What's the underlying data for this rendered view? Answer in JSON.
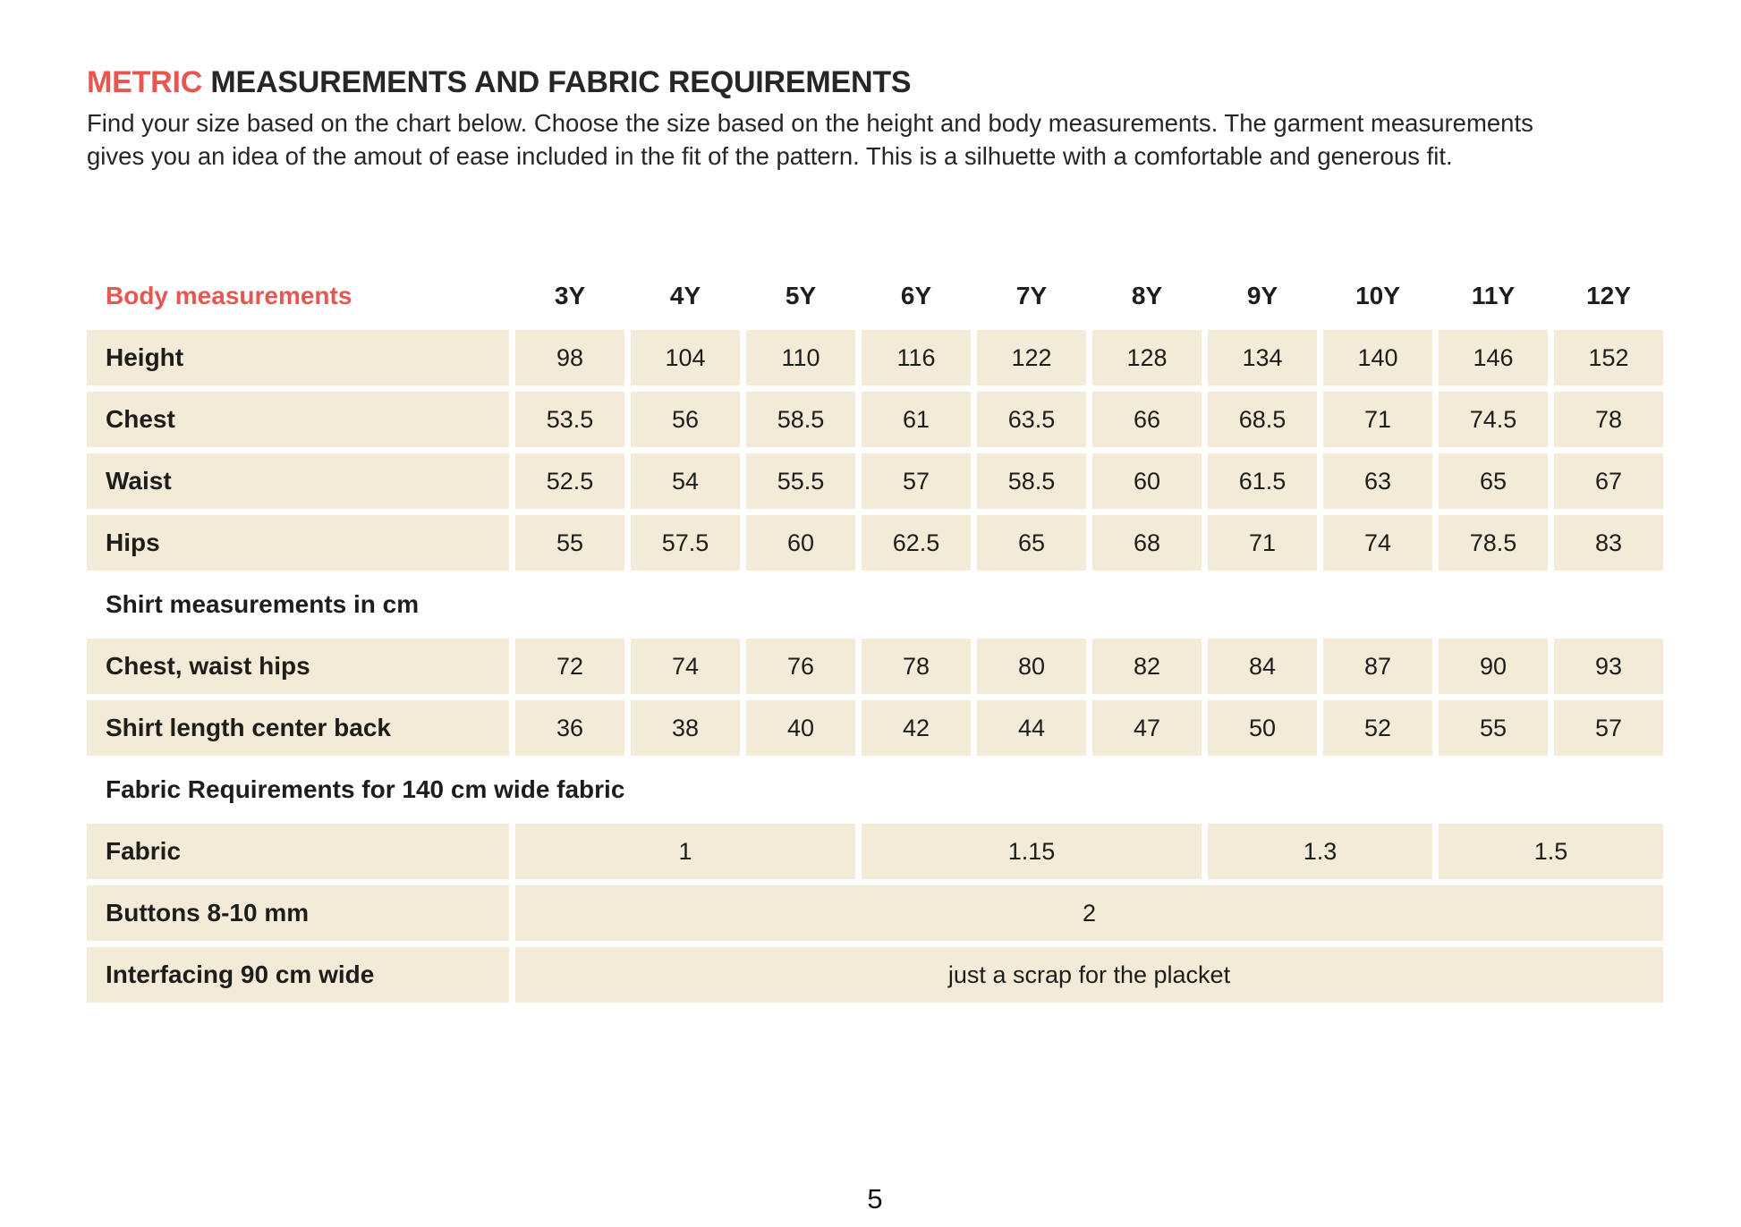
{
  "header": {
    "title_accent": "METRIC",
    "title_rest": " MEASUREMENTS AND FABRIC REQUIREMENTS",
    "intro_lines": [
      "Find your size based on the chart below. Choose the size based on the height and body measurements. The garment measurements",
      "gives you an idea of the amout of ease included in the fit of the pattern. This is a silhuette with a comfortable and generous fit."
    ]
  },
  "colors": {
    "accent_red": "#e8574f",
    "cell_beige": "#f3ebd8",
    "text_dark": "#1d1d1b"
  },
  "size_table": {
    "rows": [
      {
        "type": "header",
        "label": "Body measurements",
        "cells": [
          "3Y",
          "4Y",
          "5Y",
          "6Y",
          "7Y",
          "8Y",
          "9Y",
          "10Y",
          "11Y",
          "12Y"
        ]
      },
      {
        "type": "data",
        "label": "Height",
        "cells": [
          "98",
          "104",
          "110",
          "116",
          "122",
          "128",
          "134",
          "140",
          "146",
          "152"
        ]
      },
      {
        "type": "data",
        "label": "Chest",
        "cells": [
          "53.5",
          "56",
          "58.5",
          "61",
          "63.5",
          "66",
          "68.5",
          "71",
          "74.5",
          "78"
        ]
      },
      {
        "type": "data",
        "label": "Waist",
        "cells": [
          "52.5",
          "54",
          "55.5",
          "57",
          "58.5",
          "60",
          "61.5",
          "63",
          "65",
          "67"
        ]
      },
      {
        "type": "data",
        "label": "Hips",
        "cells": [
          "55",
          "57.5",
          "60",
          "62.5",
          "65",
          "68",
          "71",
          "74",
          "78.5",
          "83"
        ]
      },
      {
        "type": "section",
        "label": "Shirt measurements in cm"
      },
      {
        "type": "data",
        "label": "Chest, waist hips",
        "cells": [
          "72",
          "74",
          "76",
          "78",
          "80",
          "82",
          "84",
          "87",
          "90",
          "93"
        ]
      },
      {
        "type": "data",
        "label": "Shirt length center back",
        "cells": [
          "36",
          "38",
          "40",
          "42",
          "44",
          "47",
          "50",
          "52",
          "55",
          "57"
        ]
      },
      {
        "type": "section",
        "label": "Fabric Requirements for 140 cm wide fabric"
      },
      {
        "type": "data",
        "label": "Fabric",
        "cells": [
          {
            "text": "1",
            "span": 3
          },
          {
            "text": "1.15",
            "span": 3
          },
          {
            "text": "1.3",
            "span": 2
          },
          {
            "text": "1.5",
            "span": 2
          }
        ]
      },
      {
        "type": "data",
        "label": "Buttons 8-10 mm",
        "cells": [
          {
            "text": "2",
            "span": 10
          }
        ]
      },
      {
        "type": "data",
        "label": "Interfacing 90 cm wide",
        "cells": [
          {
            "text": "just a scrap for the placket",
            "span": 10
          }
        ]
      }
    ]
  },
  "footer": {
    "page_number": "5"
  }
}
